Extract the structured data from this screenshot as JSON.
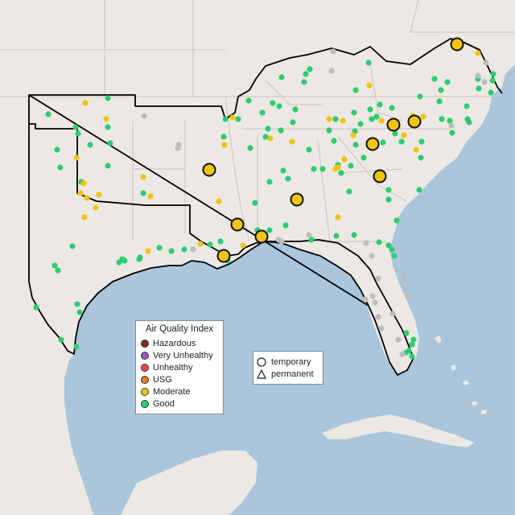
{
  "colors": {
    "ocean": "#aac6dd",
    "land": "#ece8e3",
    "good": "#2ecc71",
    "moderate": "#f1c40f",
    "no_data": "#bdbdbd",
    "usg": "#e67e22",
    "unhealthy": "#e74c3c",
    "very_unhealthy": "#9b59b6",
    "hazardous": "#7b2d26"
  },
  "legend": {
    "title": "Air Quality Index",
    "items": [
      {
        "label": "Hazardous",
        "color": "#7b2d26"
      },
      {
        "label": "Very Unhealthy",
        "color": "#9b59b6"
      },
      {
        "label": "Unhealthy",
        "color": "#e74c3c"
      },
      {
        "label": "USG",
        "color": "#e67e22"
      },
      {
        "label": "Moderate",
        "color": "#f1c40f"
      },
      {
        "label": "Good",
        "color": "#2ecc71"
      }
    ]
  },
  "shape_legend": {
    "items": [
      {
        "label": "temporary",
        "shape": "circle-icon"
      },
      {
        "label": "permanent",
        "shape": "triangle-icon"
      }
    ]
  }
}
